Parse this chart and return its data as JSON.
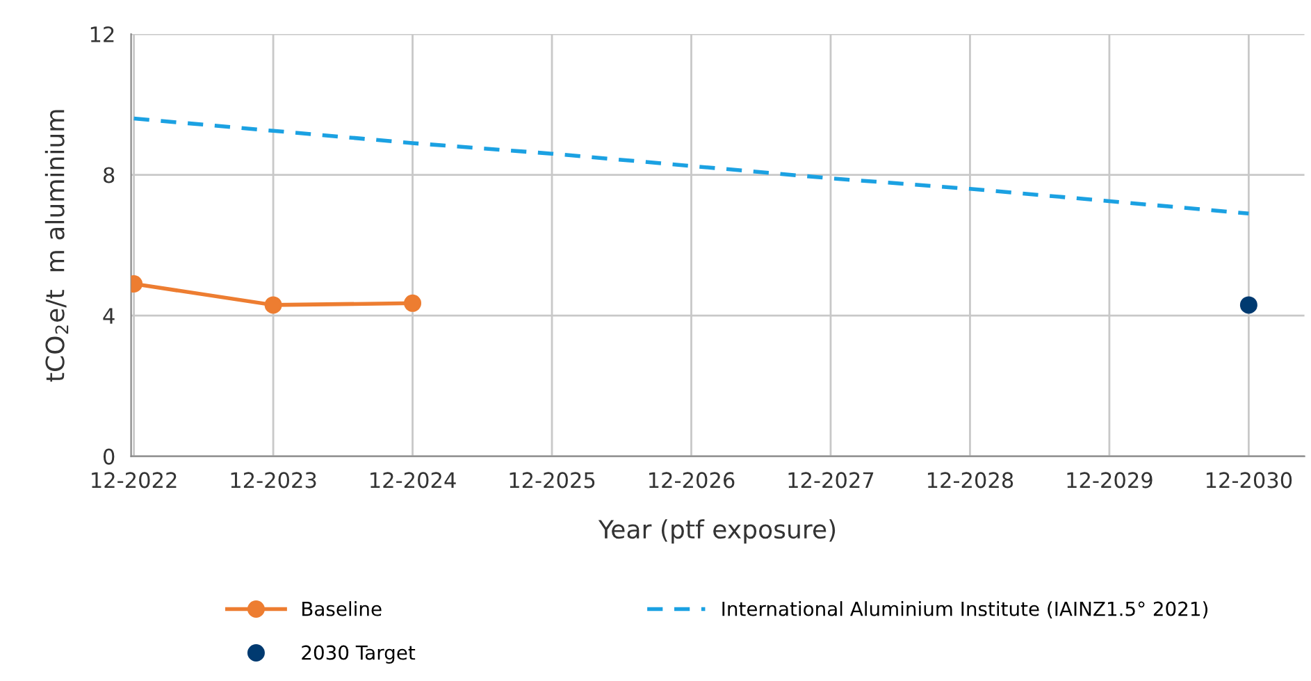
{
  "chart_data": {
    "type": "line",
    "categories": [
      "12-2022",
      "12-2023",
      "12-2024",
      "12-2025",
      "12-2026",
      "12-2027",
      "12-2028",
      "12-2029",
      "12-2030"
    ],
    "series": [
      {
        "name": "Baseline",
        "color": "#ed7d31",
        "marker": "circle",
        "line_style": "solid",
        "values": [
          4.9,
          4.3,
          4.35,
          null,
          null,
          null,
          null,
          null,
          null
        ]
      },
      {
        "name": "International Aluminium Institute (IAINZ1.5° 2021)",
        "color": "#1ba1e2",
        "marker": "none",
        "line_style": "dashed",
        "values": [
          9.6,
          9.25,
          8.9,
          8.6,
          8.25,
          7.9,
          7.6,
          7.25,
          6.9
        ]
      },
      {
        "name": "2030 Target",
        "type": "scatter",
        "color": "#003a70",
        "marker": "circle",
        "values": [
          null,
          null,
          null,
          null,
          null,
          null,
          null,
          null,
          4.3
        ]
      }
    ],
    "xlabel": "Year (ptf exposure)",
    "ylabel": "tCO$_{2}$e/t  m aluminium",
    "ylim": [
      0,
      12
    ],
    "yticks": [
      0,
      4,
      8,
      12
    ],
    "grid": true,
    "legend": "bottom"
  }
}
